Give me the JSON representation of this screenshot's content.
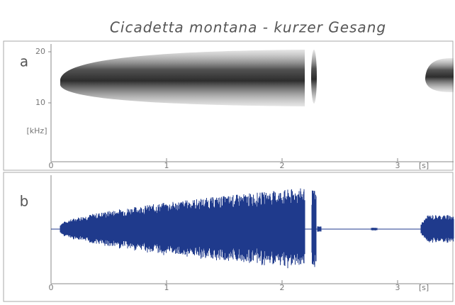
{
  "title": "Cicadetta montana - kurzer Gesang",
  "panels": [
    {
      "label": "a",
      "yticks": [
        10,
        20
      ],
      "y_unit": "[kHz]",
      "xticks": [
        0,
        1,
        2,
        3
      ],
      "x_unit": "[s]"
    },
    {
      "label": "b",
      "xticks": [
        0,
        1,
        2,
        3
      ],
      "x_unit": "[s]"
    }
  ]
}
